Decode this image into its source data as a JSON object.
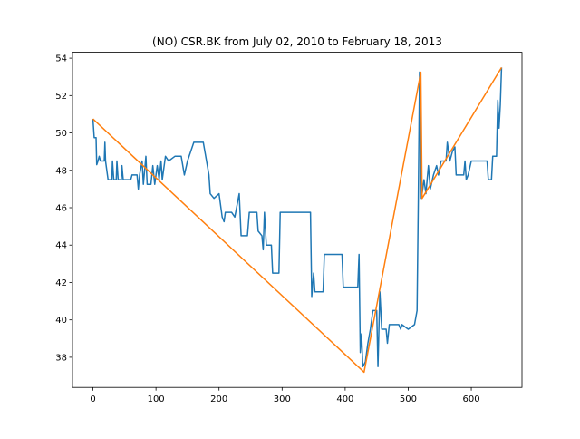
{
  "chart_data": {
    "type": "line",
    "title": "(NO) CSR.BK from July 02, 2010 to February 18, 2013",
    "xlim": [
      -32.4,
      680.4
    ],
    "xticks": [
      0,
      100,
      200,
      300,
      400,
      500,
      600
    ],
    "ylim": [
      36.385,
      54.315
    ],
    "yticks": [
      38,
      40,
      42,
      44,
      46,
      48,
      50,
      52,
      54
    ],
    "series": [
      {
        "color": "#1f77b4",
        "x": [
          0,
          2,
          5,
          6,
          8,
          10,
          12,
          18,
          19,
          20,
          24,
          30,
          31,
          33,
          37,
          38,
          40,
          45,
          46,
          48,
          60,
          62,
          70,
          72,
          74,
          78,
          80,
          84,
          86,
          92,
          95,
          98,
          102,
          105,
          108,
          110,
          115,
          120,
          130,
          140,
          145,
          150,
          160,
          175,
          184,
          186,
          192,
          200,
          205,
          208,
          210,
          220,
          225,
          232,
          235,
          245,
          248,
          260,
          262,
          268,
          270,
          272,
          275,
          283,
          285,
          295,
          297,
          345,
          347,
          350,
          352,
          365,
          367,
          395,
          397,
          420,
          422,
          424,
          426,
          428,
          432,
          436,
          440,
          444,
          450,
          452,
          455,
          458,
          465,
          467,
          470,
          485,
          488,
          490,
          500,
          510,
          514,
          516,
          518,
          521,
          525,
          528,
          532,
          535,
          540,
          545,
          548,
          552,
          560,
          562,
          566,
          570,
          574,
          576,
          588,
          590,
          592,
          595,
          600,
          625,
          627,
          632,
          634,
          640,
          642,
          644,
          646,
          648
        ],
        "values": [
          50.75,
          49.75,
          49.75,
          48.3,
          48.5,
          48.75,
          48.5,
          48.5,
          49.5,
          48.5,
          47.5,
          47.5,
          48.5,
          47.5,
          47.5,
          48.5,
          47.5,
          47.5,
          48.25,
          47.5,
          47.5,
          47.75,
          47.75,
          47,
          47.75,
          48.5,
          47.25,
          48.75,
          47.25,
          47.25,
          48.25,
          47.25,
          48.25,
          47.5,
          48.5,
          47.5,
          48.75,
          48.5,
          48.75,
          48.75,
          47.75,
          48.5,
          49.5,
          49.5,
          47.75,
          46.75,
          46.5,
          46.75,
          45.5,
          45.25,
          45.75,
          45.75,
          45.5,
          46.75,
          44.5,
          44.5,
          45.75,
          45.75,
          44.75,
          44.5,
          43.75,
          45.75,
          44,
          44,
          42.5,
          42.5,
          45.75,
          45.75,
          41.25,
          42.5,
          41.5,
          41.5,
          43.5,
          43.5,
          41.75,
          41.75,
          43.5,
          38.25,
          39.25,
          37.5,
          37.75,
          38.75,
          39.5,
          40.5,
          40.5,
          37.5,
          41.5,
          39.5,
          39.5,
          38.75,
          39.75,
          39.75,
          39.5,
          39.75,
          39.5,
          39.75,
          40.5,
          46.5,
          53.25,
          46.5,
          47.5,
          46.75,
          48.25,
          47,
          47.75,
          48.25,
          47.75,
          48.5,
          48.5,
          49.5,
          48.5,
          49,
          49.25,
          47.75,
          47.75,
          48.5,
          47.5,
          47.75,
          48.5,
          48.5,
          47.5,
          47.5,
          48.75,
          48.75,
          51.75,
          50.25,
          51.5,
          53.5
        ]
      },
      {
        "color": "#ff7f0e",
        "x": [
          0,
          430,
          520,
          522,
          648
        ],
        "values": [
          50.75,
          37.2,
          53.25,
          46.5,
          53.5
        ]
      }
    ]
  }
}
